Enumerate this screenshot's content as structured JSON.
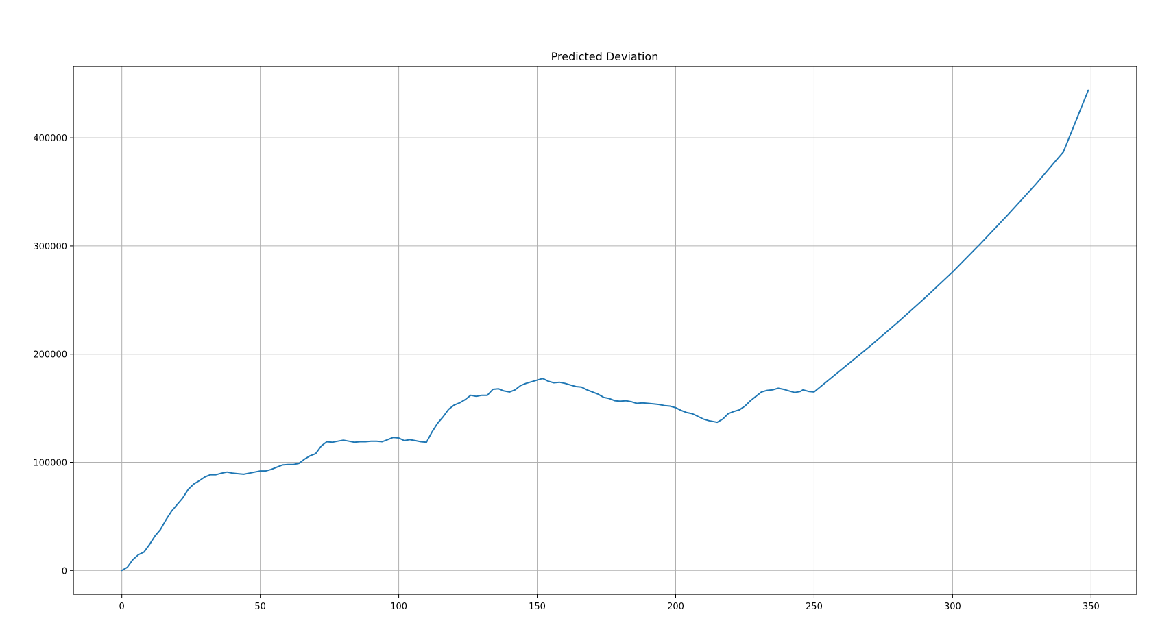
{
  "chart_data": {
    "type": "line",
    "title": "Predicted Deviation",
    "xlabel": "",
    "ylabel": "",
    "xlim": [
      -17.5,
      366.5
    ],
    "ylim": [
      -22000,
      466000
    ],
    "x_ticks": [
      0,
      50,
      100,
      150,
      200,
      250,
      300,
      350
    ],
    "y_ticks": [
      0,
      100000,
      200000,
      300000,
      400000
    ],
    "grid": true,
    "legend": "none",
    "series": [
      {
        "color": "#1f77b4",
        "x": [
          0,
          2,
          4,
          6,
          8,
          10,
          12,
          14,
          16,
          18,
          20,
          22,
          24,
          26,
          28,
          30,
          32,
          34,
          36,
          38,
          40,
          42,
          44,
          46,
          48,
          50,
          52,
          54,
          56,
          58,
          60,
          62,
          64,
          66,
          68,
          70,
          72,
          74,
          76,
          78,
          80,
          82,
          84,
          86,
          88,
          90,
          92,
          94,
          96,
          98,
          100,
          102,
          104,
          106,
          108,
          110,
          112,
          114,
          116,
          118,
          120,
          122,
          124,
          126,
          128,
          130,
          132,
          134,
          136,
          138,
          140,
          142,
          144,
          146,
          148,
          150,
          152,
          154,
          156,
          158,
          160,
          162,
          164,
          166,
          168,
          170,
          172,
          174,
          176,
          178,
          180,
          182,
          184,
          186,
          188,
          190,
          192,
          194,
          196,
          198,
          200,
          202,
          204,
          206,
          208,
          210,
          212,
          214,
          215,
          217,
          219,
          221,
          223,
          225,
          227,
          229,
          231,
          233,
          235,
          237,
          239,
          241,
          243,
          245,
          246,
          248,
          250,
          260,
          270,
          280,
          290,
          300,
          310,
          320,
          330,
          340,
          349
        ],
        "values": [
          0,
          3000,
          10000,
          14500,
          17000,
          24000,
          32000,
          38000,
          47000,
          55000,
          61000,
          67000,
          75000,
          80000,
          83000,
          86500,
          88500,
          88500,
          90000,
          91000,
          90000,
          89500,
          89000,
          90000,
          91000,
          92000,
          92000,
          93500,
          95500,
          97500,
          98000,
          98000,
          99000,
          103000,
          106000,
          108000,
          115000,
          119000,
          118500,
          119500,
          120500,
          119500,
          118500,
          119000,
          119000,
          119500,
          119500,
          119000,
          121000,
          123000,
          122500,
          120000,
          121000,
          120000,
          119000,
          118500,
          128000,
          136000,
          142000,
          149000,
          153000,
          155000,
          158000,
          162000,
          161000,
          162000,
          162000,
          167500,
          168000,
          166000,
          165000,
          167000,
          171000,
          173000,
          174500,
          176000,
          177500,
          175000,
          173500,
          174000,
          173000,
          171500,
          170000,
          169500,
          167000,
          165000,
          163000,
          160000,
          159000,
          157000,
          156500,
          157000,
          156000,
          154500,
          155000,
          154500,
          154000,
          153500,
          152500,
          152000,
          150500,
          148000,
          146000,
          145000,
          142500,
          140000,
          138500,
          137500,
          137000,
          140000,
          145000,
          147000,
          148500,
          152000,
          157000,
          161000,
          165000,
          166500,
          167000,
          168500,
          167500,
          166000,
          164500,
          165500,
          167000,
          165500,
          165000,
          186000,
          207000,
          229000,
          252000,
          276000,
          302000,
          329000,
          357000,
          387000,
          444000
        ]
      }
    ]
  }
}
